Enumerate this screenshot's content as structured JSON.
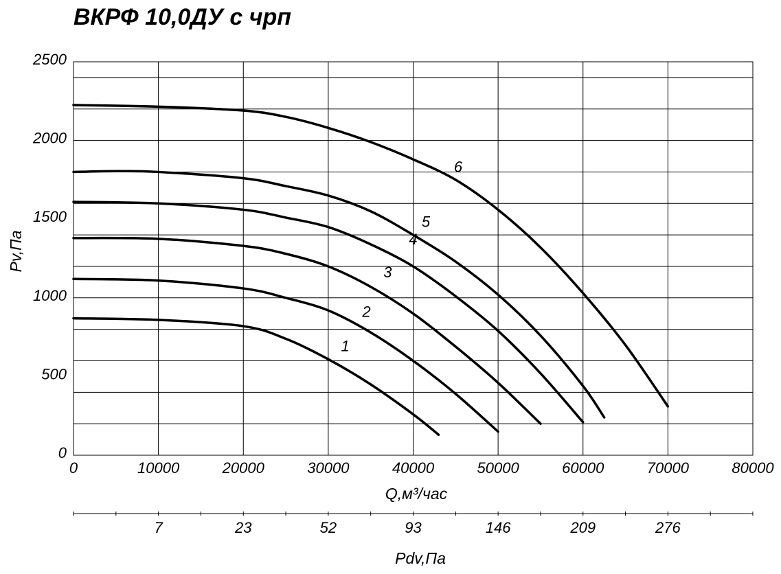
{
  "chart_data": {
    "type": "line",
    "title": "ВКРФ 10,0ДУ с чрп",
    "xlabel": "Q,м³/час",
    "ylabel": "Pv,Па",
    "x2label": "Pdv,Па",
    "xlim": [
      0,
      80000
    ],
    "ylim": [
      0,
      2500
    ],
    "grid": true,
    "x_ticks": [
      "0",
      "10000",
      "20000",
      "30000",
      "40000",
      "50000",
      "60000",
      "70000",
      "80000"
    ],
    "x_tick_values": [
      0,
      10000,
      20000,
      30000,
      40000,
      50000,
      60000,
      70000,
      80000
    ],
    "y_ticks": [
      "0",
      "500",
      "1000",
      "1500",
      "2000",
      "2500"
    ],
    "y_tick_values": [
      0,
      500,
      1000,
      1500,
      2000,
      2500
    ],
    "x2_ticks": [
      "7",
      "23",
      "52",
      "93",
      "146",
      "209",
      "276"
    ],
    "x2_tick_q": [
      10000,
      20000,
      30000,
      40000,
      50000,
      60000,
      70000
    ],
    "series": [
      {
        "name": "1",
        "x": [
          0,
          10000,
          20000,
          25000,
          30000,
          35000,
          40000,
          43000
        ],
        "y": [
          870,
          860,
          820,
          740,
          610,
          450,
          260,
          130
        ]
      },
      {
        "name": "2",
        "x": [
          0,
          10000,
          20000,
          25000,
          30000,
          35000,
          40000,
          45000,
          50000
        ],
        "y": [
          1120,
          1110,
          1060,
          1000,
          920,
          780,
          600,
          390,
          150
        ]
      },
      {
        "name": "3",
        "x": [
          0,
          10000,
          20000,
          25000,
          30000,
          35000,
          40000,
          45000,
          50000,
          55000
        ],
        "y": [
          1380,
          1375,
          1330,
          1280,
          1200,
          1070,
          900,
          690,
          460,
          200
        ]
      },
      {
        "name": "4",
        "x": [
          0,
          10000,
          20000,
          25000,
          30000,
          35000,
          40000,
          45000,
          50000,
          55000,
          60000
        ],
        "y": [
          1610,
          1600,
          1560,
          1510,
          1450,
          1340,
          1200,
          1010,
          790,
          520,
          210
        ]
      },
      {
        "name": "5",
        "x": [
          0,
          5000,
          10000,
          20000,
          25000,
          30000,
          35000,
          40000,
          45000,
          50000,
          55000,
          60000,
          62500
        ],
        "y": [
          1800,
          1805,
          1800,
          1760,
          1710,
          1650,
          1550,
          1400,
          1230,
          1020,
          760,
          440,
          240
        ]
      },
      {
        "name": "6",
        "x": [
          0,
          10000,
          20000,
          25000,
          30000,
          35000,
          40000,
          45000,
          50000,
          55000,
          60000,
          65000,
          70000
        ],
        "y": [
          2225,
          2215,
          2190,
          2150,
          2080,
          1990,
          1880,
          1750,
          1560,
          1320,
          1030,
          700,
          310
        ]
      }
    ],
    "curve_labels": [
      {
        "text": "1",
        "x": 32000,
        "y": 660
      },
      {
        "text": "2",
        "x": 34500,
        "y": 880
      },
      {
        "text": "3",
        "x": 37000,
        "y": 1130
      },
      {
        "text": "4",
        "x": 40000,
        "y": 1340
      },
      {
        "text": "5",
        "x": 41500,
        "y": 1450
      },
      {
        "text": "6",
        "x": 45300,
        "y": 1800
      }
    ]
  }
}
